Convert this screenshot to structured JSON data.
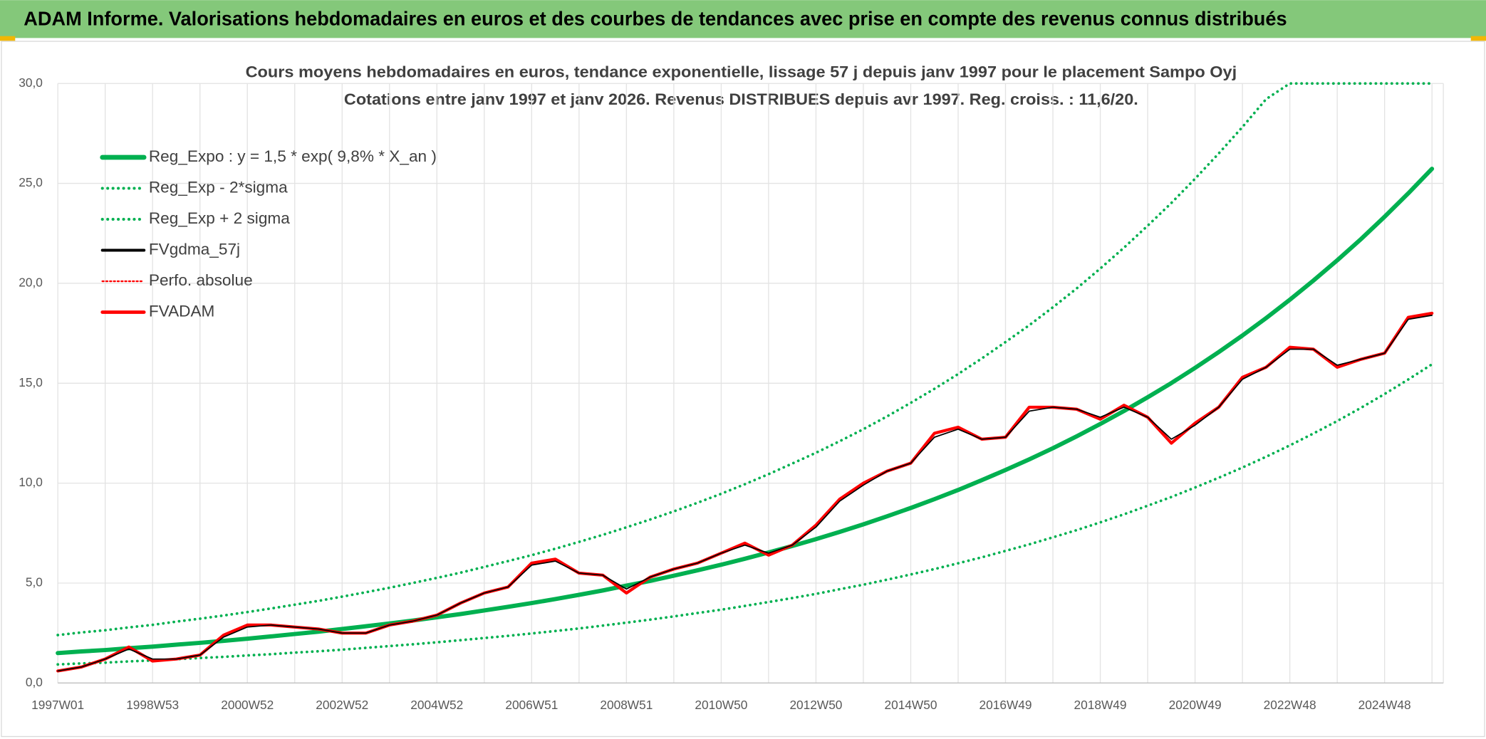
{
  "header": "ADAM Informe. Valorisations hebdomadaires en euros et des courbes de tendances avec prise en compte des revenus connus distribués",
  "chart_data": {
    "type": "line",
    "title": "Cours moyens hebdomadaires en euros, tendance exponentielle, lissage 57 j depuis janv 1997 pour le placement Sampo Oyj",
    "subtitle": "Cotations entre janv 1997 et janv 2026. Revenus DISTRIBUES depuis avr 1997. Reg. croiss. : 11,6/20.",
    "categories": [
      "1997W01",
      null,
      null,
      null,
      "1998W53",
      null,
      null,
      null,
      "2000W52",
      null,
      null,
      null,
      "2002W52",
      null,
      null,
      null,
      "2004W52",
      null,
      null,
      null,
      "2006W51",
      null,
      null,
      null,
      "2008W51",
      null,
      null,
      null,
      "2010W50",
      null,
      null,
      null,
      "2012W50",
      null,
      null,
      null,
      "2014W50",
      null,
      null,
      null,
      "2016W49",
      null,
      null,
      null,
      "2018W49",
      null,
      null,
      null,
      "2020W49",
      null,
      null,
      null,
      "2022W48",
      null,
      null,
      null,
      "2024W48",
      null,
      null
    ],
    "ylim": [
      0,
      30
    ],
    "yticks": [
      {
        "value": 0,
        "label": "0,0"
      },
      {
        "value": 5,
        "label": "5,0"
      },
      {
        "value": 10,
        "label": "10,0"
      },
      {
        "value": 15,
        "label": "15,0"
      },
      {
        "value": 20,
        "label": "20,0"
      },
      {
        "value": 25,
        "label": "25,0"
      },
      {
        "value": 30,
        "label": "30,0"
      }
    ],
    "grid": true,
    "legend": "upper left",
    "series": [
      {
        "name": "Reg_Expo : y = 1,5 * exp( 9,8% *  X_an )",
        "color": "#00b050",
        "style": "solid",
        "values": [
          1.5,
          1.58,
          1.65,
          1.74,
          1.82,
          1.92,
          2.01,
          2.11,
          2.22,
          2.33,
          2.45,
          2.57,
          2.7,
          2.84,
          2.98,
          3.13,
          3.29,
          3.45,
          3.63,
          3.81,
          4.0,
          4.2,
          4.41,
          4.63,
          4.87,
          5.11,
          5.37,
          5.64,
          5.92,
          6.22,
          6.53,
          6.86,
          7.2,
          7.56,
          7.94,
          8.34,
          8.76,
          9.2,
          9.66,
          10.15,
          10.66,
          11.19,
          11.75,
          12.34,
          12.96,
          13.61,
          14.3,
          15.01,
          15.77,
          16.56,
          17.39,
          18.26,
          19.18,
          20.14,
          21.15,
          22.21,
          23.33,
          24.5,
          25.73
        ]
      },
      {
        "name": "Reg_Exp - 2*sigma",
        "color": "#00b050",
        "style": "dotted",
        "values": [
          0.93,
          0.98,
          1.02,
          1.08,
          1.13,
          1.19,
          1.25,
          1.31,
          1.38,
          1.44,
          1.52,
          1.59,
          1.67,
          1.76,
          1.85,
          1.94,
          2.04,
          2.14,
          2.25,
          2.36,
          2.48,
          2.6,
          2.73,
          2.87,
          3.02,
          3.17,
          3.33,
          3.5,
          3.67,
          3.86,
          4.05,
          4.25,
          4.46,
          4.69,
          4.92,
          5.17,
          5.43,
          5.7,
          5.99,
          6.29,
          6.61,
          6.94,
          7.29,
          7.65,
          8.04,
          8.44,
          8.87,
          9.31,
          9.78,
          10.27,
          10.78,
          11.32,
          11.89,
          12.49,
          13.11,
          13.77,
          14.46,
          15.19,
          15.95
        ]
      },
      {
        "name": "Reg_Exp + 2 sigma",
        "color": "#00b050",
        "style": "dotted",
        "values": [
          2.4,
          2.53,
          2.64,
          2.78,
          2.91,
          3.07,
          3.22,
          3.38,
          3.55,
          3.73,
          3.92,
          4.11,
          4.32,
          4.54,
          4.77,
          5.01,
          5.26,
          5.52,
          5.81,
          6.1,
          6.4,
          6.72,
          7.06,
          7.41,
          7.79,
          8.18,
          8.59,
          9.02,
          9.47,
          9.95,
          10.45,
          10.98,
          11.52,
          12.1,
          12.7,
          13.34,
          14.02,
          14.72,
          15.46,
          16.24,
          17.06,
          17.9,
          18.8,
          19.74,
          20.74,
          21.78,
          22.88,
          24.02,
          25.23,
          26.5,
          27.82,
          29.22,
          30,
          30,
          30,
          30,
          30,
          30,
          30
        ]
      },
      {
        "name": "FVgdma_57j",
        "color": "#000000",
        "style": "thin",
        "values": [
          0.6,
          0.8,
          1.2,
          1.7,
          1.2,
          1.2,
          1.4,
          2.3,
          2.8,
          2.9,
          2.8,
          2.7,
          2.5,
          2.5,
          2.9,
          3.1,
          3.4,
          4.0,
          4.5,
          4.8,
          5.9,
          6.1,
          5.5,
          5.4,
          4.7,
          5.3,
          5.7,
          6.0,
          6.5,
          6.9,
          6.5,
          6.9,
          7.8,
          9.1,
          9.9,
          10.6,
          11.0,
          12.3,
          12.7,
          12.2,
          12.3,
          13.6,
          13.8,
          13.7,
          13.3,
          13.8,
          13.3,
          12.2,
          12.9,
          13.8,
          15.2,
          15.8,
          16.7,
          16.7,
          15.9,
          16.2,
          16.5,
          18.2,
          18.4
        ]
      },
      {
        "name": "Perfo. absolue",
        "color": "#ff0000",
        "style": "dotted-thin",
        "values": [
          0.6,
          0.8,
          1.2,
          1.8,
          1.1,
          1.2,
          1.4,
          2.4,
          2.9,
          2.9,
          2.8,
          2.7,
          2.5,
          2.5,
          2.9,
          3.1,
          3.4,
          4.0,
          4.5,
          4.8,
          6.0,
          6.2,
          5.5,
          5.4,
          4.5,
          5.3,
          5.7,
          6.0,
          6.5,
          7.0,
          6.4,
          6.9,
          7.9,
          9.2,
          10.0,
          10.6,
          11.0,
          12.5,
          12.8,
          12.2,
          12.3,
          13.8,
          13.8,
          13.7,
          13.2,
          13.9,
          13.3,
          12.0,
          13.0,
          13.8,
          15.3,
          15.8,
          16.8,
          16.7,
          15.8,
          16.2,
          16.5,
          18.3,
          18.5
        ]
      },
      {
        "name": "FVADAM",
        "color": "#ff0000",
        "style": "thick",
        "values": [
          0.6,
          0.8,
          1.2,
          1.8,
          1.1,
          1.2,
          1.4,
          2.4,
          2.9,
          2.9,
          2.8,
          2.7,
          2.5,
          2.5,
          2.9,
          3.1,
          3.4,
          4.0,
          4.5,
          4.8,
          6.0,
          6.2,
          5.5,
          5.4,
          4.5,
          5.3,
          5.7,
          6.0,
          6.5,
          7.0,
          6.4,
          6.9,
          7.9,
          9.2,
          10.0,
          10.6,
          11.0,
          12.5,
          12.8,
          12.2,
          12.3,
          13.8,
          13.8,
          13.7,
          13.2,
          13.9,
          13.3,
          12.0,
          13.0,
          13.8,
          15.3,
          15.8,
          16.8,
          16.7,
          15.8,
          16.2,
          16.5,
          18.3,
          18.5
        ]
      }
    ]
  }
}
